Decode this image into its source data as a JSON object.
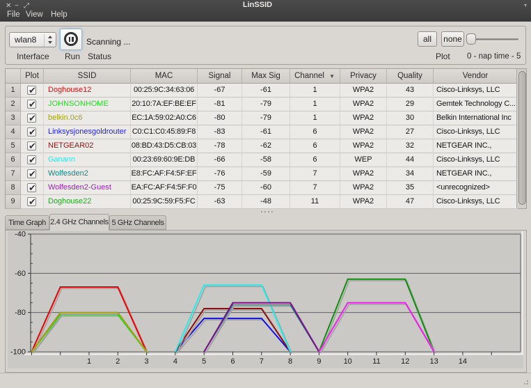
{
  "window": {
    "title": "LinSSID",
    "controls": {
      "close": "✕",
      "minimize": "−",
      "maximize": "⤢",
      "shade_chevron": "▾"
    },
    "menu": [
      "File",
      "View",
      "Help"
    ]
  },
  "toolbar": {
    "interface_value": "wlan8",
    "interface_label": "Interface",
    "run_label": "Run",
    "status_value": "Scanning ...",
    "status_label": "Status",
    "all_button": "all",
    "none_button": "none",
    "plot_label": "Plot",
    "nap_time_label": "0 - nap time - 5",
    "nap_slider_value": 0
  },
  "table": {
    "columns": [
      "Plot",
      "SSID",
      "MAC",
      "Signal",
      "Max Sig",
      "Channel",
      "Privacy",
      "Quality",
      "Vendor"
    ],
    "sort_column": "Channel",
    "sort_indicator": "▼",
    "rows": [
      {
        "num": 1,
        "plot": true,
        "ssid": "Doghouse12",
        "color": "#dd1111",
        "mac": "00:25:9C:34:63:06",
        "signal": "-67",
        "max_sig": "-61",
        "channel": "1",
        "privacy": "WPA2",
        "quality": "43",
        "vendor": "Cisco-Linksys, LLC"
      },
      {
        "num": 2,
        "plot": true,
        "ssid": "JOHNSONHOME",
        "color": "#15e815",
        "mac": "20:10:7A:EF:BE:EF",
        "signal": "-81",
        "max_sig": "-79",
        "channel": "1",
        "privacy": "WPA2",
        "quality": "29",
        "vendor": "Gemtek Technology C..."
      },
      {
        "num": 3,
        "plot": true,
        "ssid": "belkin.0c6",
        "color": "#a3a317",
        "mac": "EC:1A:59:02:A0:C6",
        "signal": "-80",
        "max_sig": "-79",
        "channel": "1",
        "privacy": "WPA2",
        "quality": "30",
        "vendor": "Belkin International Inc"
      },
      {
        "num": 4,
        "plot": true,
        "ssid": "Linksysjonesgoldrouter",
        "color": "#2222ee",
        "mac": "C0:C1:C0:45:89:F8",
        "signal": "-83",
        "max_sig": "-61",
        "channel": "6",
        "privacy": "WPA2",
        "quality": "27",
        "vendor": "Cisco-Linksys, LLC"
      },
      {
        "num": 5,
        "plot": true,
        "ssid": "NETGEAR02",
        "color": "#991111",
        "mac": "08:BD:43:D5:CB:03",
        "signal": "-78",
        "max_sig": "-62",
        "channel": "6",
        "privacy": "WPA2",
        "quality": "32",
        "vendor": "NETGEAR INC.,"
      },
      {
        "num": 6,
        "plot": true,
        "ssid": "Ganann",
        "color": "#33e8e8",
        "mac": "00:23:69:60:9E:DB",
        "signal": "-66",
        "max_sig": "-58",
        "channel": "6",
        "privacy": "WEP",
        "quality": "44",
        "vendor": "Cisco-Linksys, LLC"
      },
      {
        "num": 7,
        "plot": true,
        "ssid": "Wolfesden2",
        "color": "#118888",
        "mac": "E8:FC:AF:F4:5F:EF",
        "signal": "-76",
        "max_sig": "-59",
        "channel": "7",
        "privacy": "WPA2",
        "quality": "34",
        "vendor": "NETGEAR INC.,"
      },
      {
        "num": 8,
        "plot": true,
        "ssid": "Wolfesden2-Guest",
        "color": "#9922bb",
        "mac": "EA:FC:AF:F4:5F:F0",
        "signal": "-75",
        "max_sig": "-60",
        "channel": "7",
        "privacy": "WPA2",
        "quality": "35",
        "vendor": "&lt;unrecognized&gt;"
      },
      {
        "num": 9,
        "plot": true,
        "ssid": "Doghouse22",
        "color": "#22aa22",
        "mac": "00:25:9C:59:F5:FC",
        "signal": "-63",
        "max_sig": "-48",
        "channel": "11",
        "privacy": "WPA2",
        "quality": "47",
        "vendor": "Cisco-Linksys, LLC"
      }
    ]
  },
  "tabs": [
    {
      "label": "Time Graph",
      "active": false
    },
    {
      "label": "2.4 GHz Channels",
      "active": true
    },
    {
      "label": "5 GHz Channels",
      "active": false
    }
  ],
  "chart_data": {
    "type": "area",
    "title": "",
    "x_tick_labels": [
      1,
      2,
      3,
      4,
      5,
      6,
      7,
      8,
      9,
      10,
      11,
      12,
      13,
      14
    ],
    "x_range": [
      -1,
      16
    ],
    "y_ticks": [
      -40,
      -60,
      -80,
      -100
    ],
    "y_range": [
      -100,
      -40
    ],
    "grid": true,
    "shape_note": "each series is a trapezoid: baseline -100 dBm at channel±2, plateau at signal level from channel-1 to channel+1",
    "series": [
      {
        "name": "Doghouse12",
        "color": "#ee0000",
        "channel": 1,
        "signal": -67
      },
      {
        "name": "JOHNSONHOME",
        "color": "#11dd11",
        "channel": 1,
        "signal": -81
      },
      {
        "name": "belkin.0c6",
        "color": "#a3a317",
        "channel": 1,
        "signal": -80
      },
      {
        "name": "Linksysjonesgoldrouter",
        "color": "#1111ee",
        "channel": 6,
        "signal": -83
      },
      {
        "name": "NETGEAR02",
        "color": "#8b1111",
        "channel": 6,
        "signal": -78
      },
      {
        "name": "Ganann",
        "color": "#22eeee",
        "channel": 6,
        "signal": -66
      },
      {
        "name": "Wolfesden2",
        "color": "#117f7f",
        "channel": 7,
        "signal": -76
      },
      {
        "name": "Wolfesden2-Guest",
        "color": "#7f118f",
        "channel": 7,
        "signal": -75
      },
      {
        "name": "Doghouse22",
        "color": "#0f8f0f",
        "channel": 11,
        "signal": -63
      },
      {
        "name": "",
        "color": "#f01ff0",
        "channel": 11,
        "signal": -75
      }
    ]
  }
}
